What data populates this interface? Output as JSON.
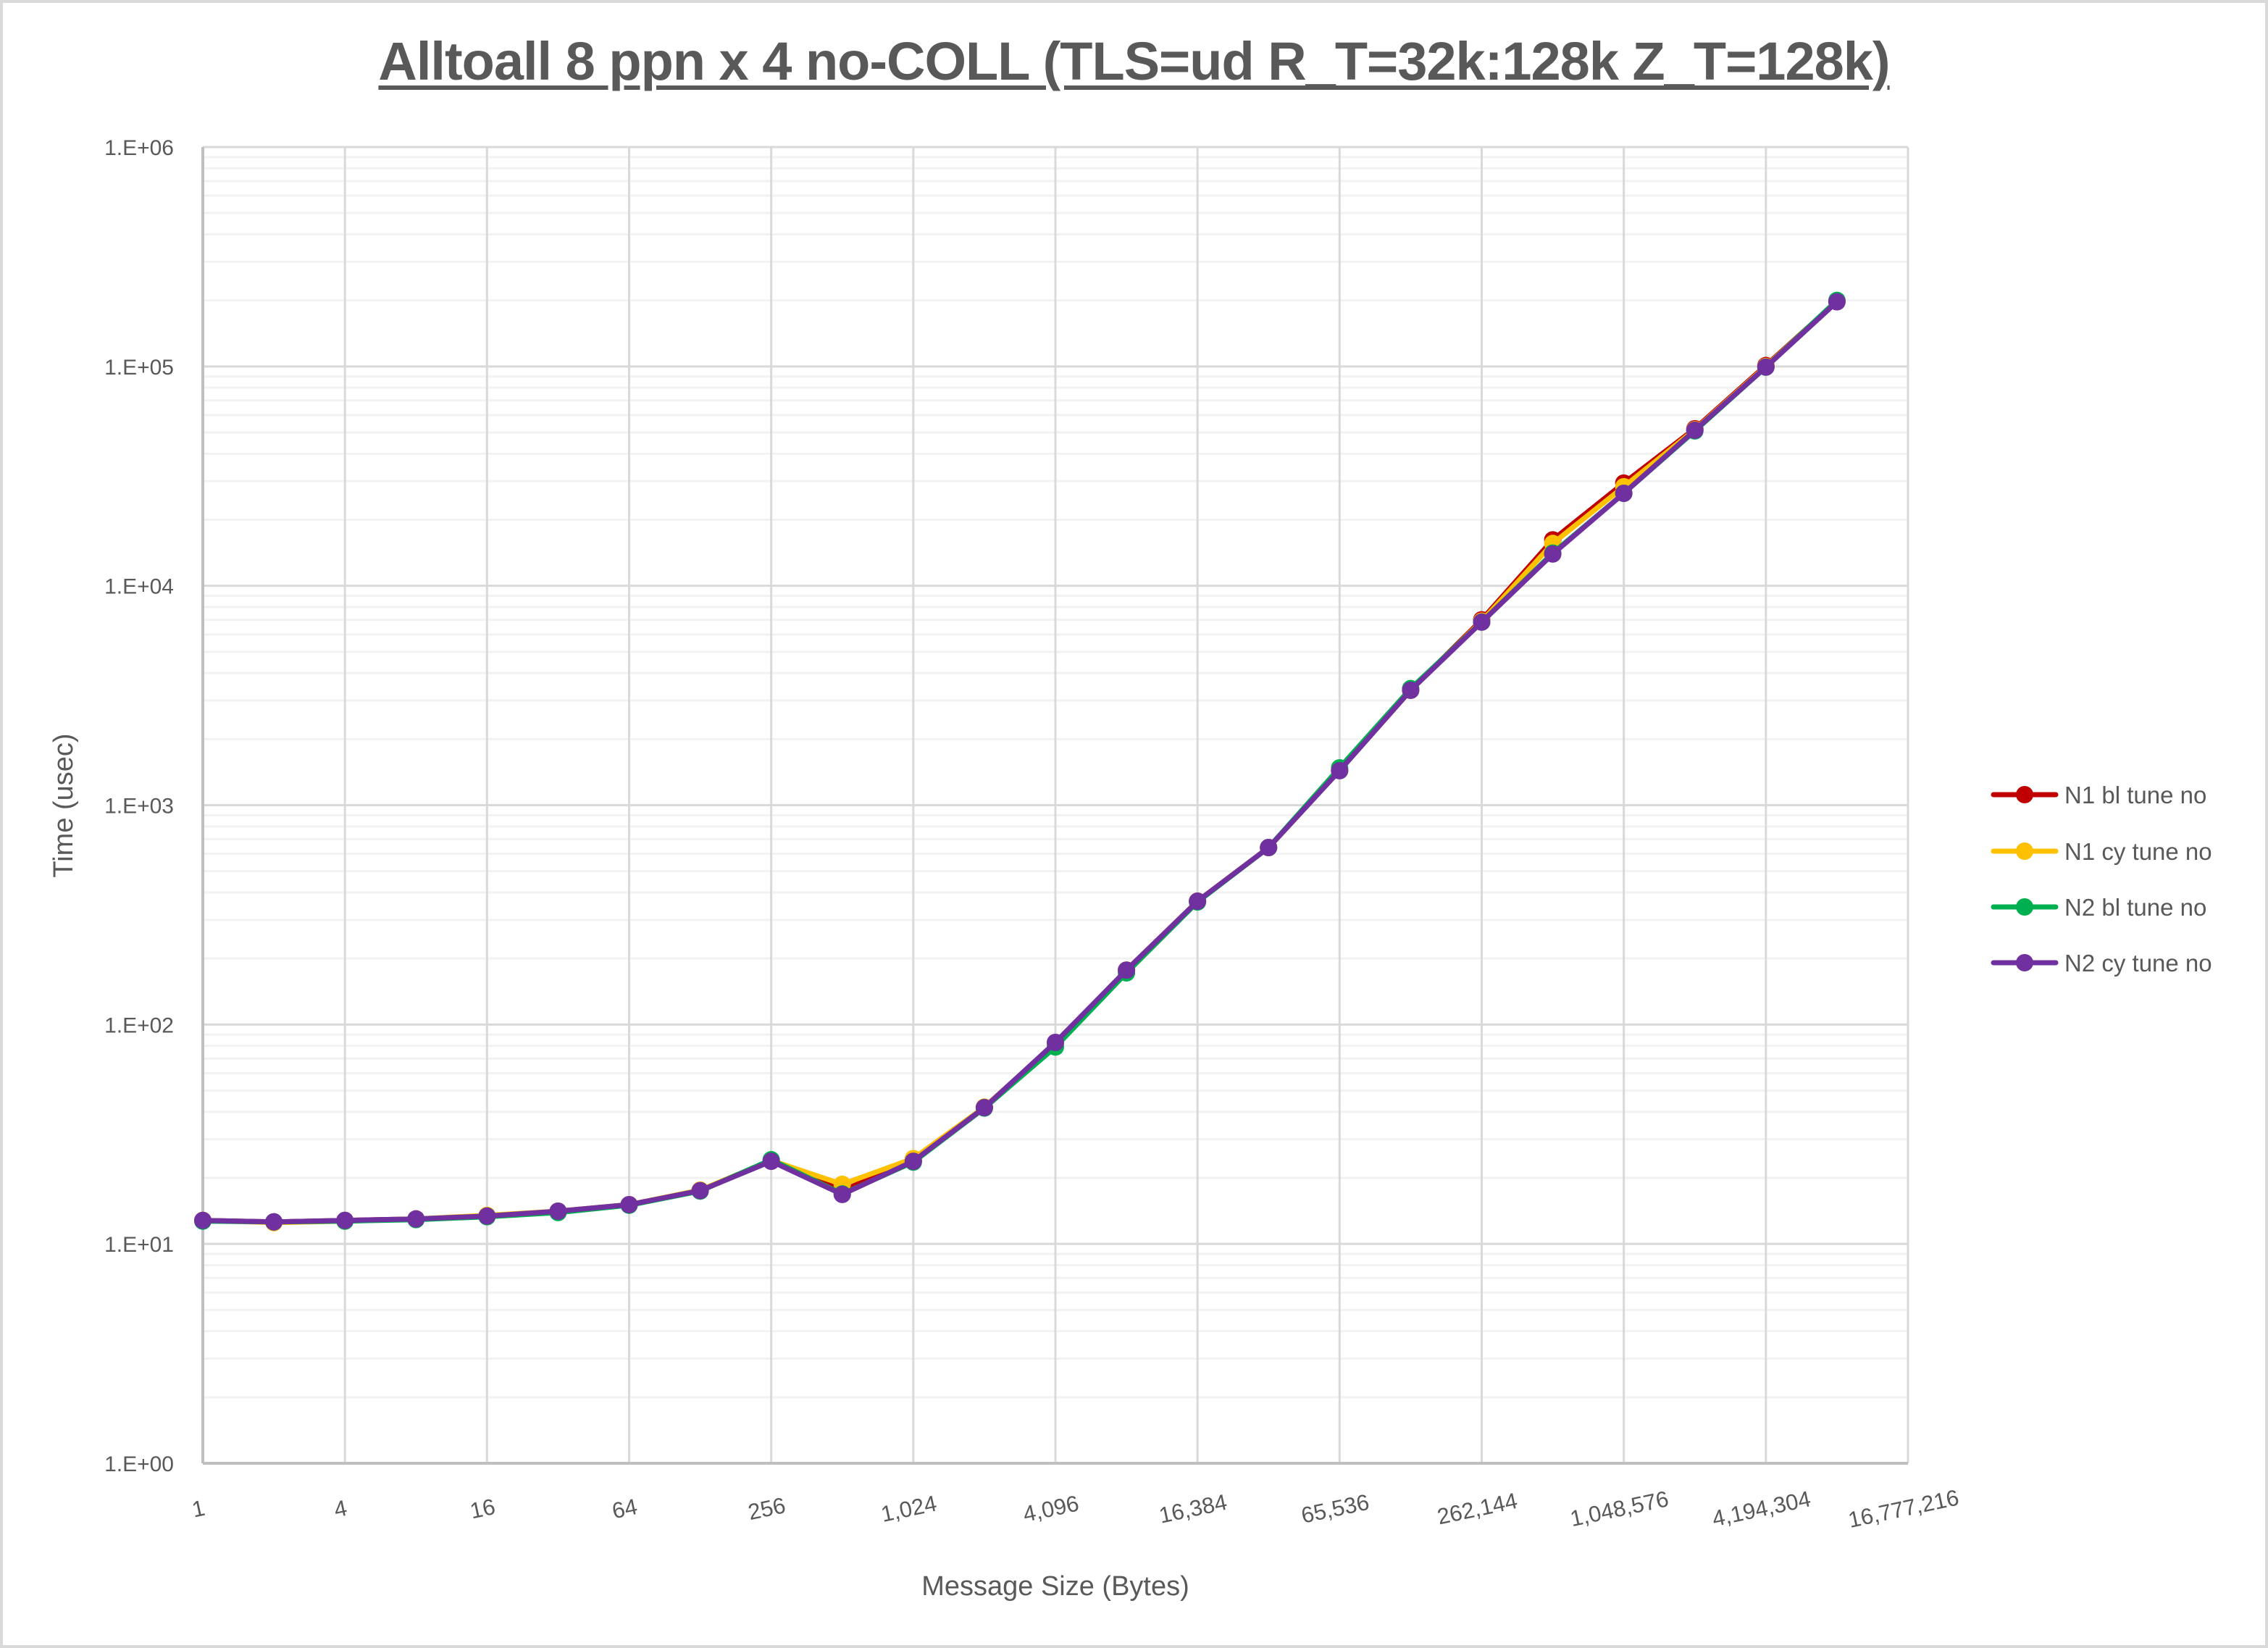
{
  "chart_data": {
    "type": "line",
    "title": "Alltoall 8 ppn x 4 no-COLL (TLS=ud R_T=32k:128k Z_T=128k)",
    "xlabel": "Message Size (Bytes)",
    "ylabel": "Time (usec)",
    "x_scale": "log2",
    "y_scale": "log10",
    "xlim": [
      1,
      16777216
    ],
    "ylim": [
      1,
      1000000
    ],
    "grid": {
      "major": true,
      "minor_y": true
    },
    "legend_position": "right",
    "x_tick_labels": [
      "1",
      "4",
      "16",
      "64",
      "256",
      "1,024",
      "4,096",
      "16,384",
      "65,536",
      "262,144",
      "1,048,576",
      "4,194,304",
      "16,777,216"
    ],
    "x_tick_values": [
      1,
      4,
      16,
      64,
      256,
      1024,
      4096,
      16384,
      65536,
      262144,
      1048576,
      4194304,
      16777216
    ],
    "y_tick_labels": [
      "1.E+00",
      "1.E+01",
      "1.E+02",
      "1.E+03",
      "1.E+04",
      "1.E+05",
      "1.E+06"
    ],
    "y_tick_values": [
      1,
      10,
      100,
      1000,
      10000,
      100000,
      1000000
    ],
    "x": [
      1,
      2,
      4,
      8,
      16,
      32,
      64,
      128,
      256,
      512,
      1024,
      2048,
      4096,
      8192,
      16384,
      32768,
      65536,
      131072,
      262144,
      524288,
      1048576,
      2097152,
      4194304,
      8388608
    ],
    "series": [
      {
        "name": "N1 bl tune no",
        "color": "#c00000",
        "values": [
          12.8,
          12.6,
          12.8,
          13.0,
          13.4,
          14.1,
          15.1,
          17.5,
          24.0,
          17.5,
          24.0,
          42.0,
          82.0,
          177,
          365,
          641,
          1440,
          3340,
          7000,
          16200,
          29400,
          52000,
          101000,
          198000
        ]
      },
      {
        "name": "N1 cy tune no",
        "color": "#ffc000",
        "values": [
          12.8,
          12.5,
          12.7,
          13.0,
          13.5,
          14.1,
          15.1,
          17.6,
          24.0,
          18.7,
          24.5,
          42.0,
          82.0,
          177,
          365,
          641,
          1440,
          3340,
          6900,
          15600,
          28300,
          51500,
          100000,
          198000
        ]
      },
      {
        "name": "N2 bl tune no",
        "color": "#00b050",
        "values": [
          12.7,
          12.6,
          12.7,
          12.9,
          13.3,
          13.9,
          15.0,
          17.4,
          24.2,
          16.9,
          23.6,
          41.6,
          79.0,
          172,
          362,
          641,
          1480,
          3400,
          6830,
          14100,
          26400,
          50800,
          99300,
          200000
        ]
      },
      {
        "name": "N2 cy tune no",
        "color": "#7030a0",
        "values": [
          12.8,
          12.6,
          12.8,
          13.0,
          13.4,
          14.1,
          15.1,
          17.5,
          23.8,
          16.8,
          23.8,
          41.8,
          82.9,
          177,
          365,
          641,
          1436,
          3340,
          6830,
          13960,
          26400,
          51200,
          99300,
          197000
        ]
      }
    ]
  },
  "colors": {
    "text": "#595959",
    "major_grid": "#d9d9d9",
    "minor_grid": "#f2f2f2",
    "axis_line": "#bfbfbf",
    "frame": "#d9d9d9"
  }
}
